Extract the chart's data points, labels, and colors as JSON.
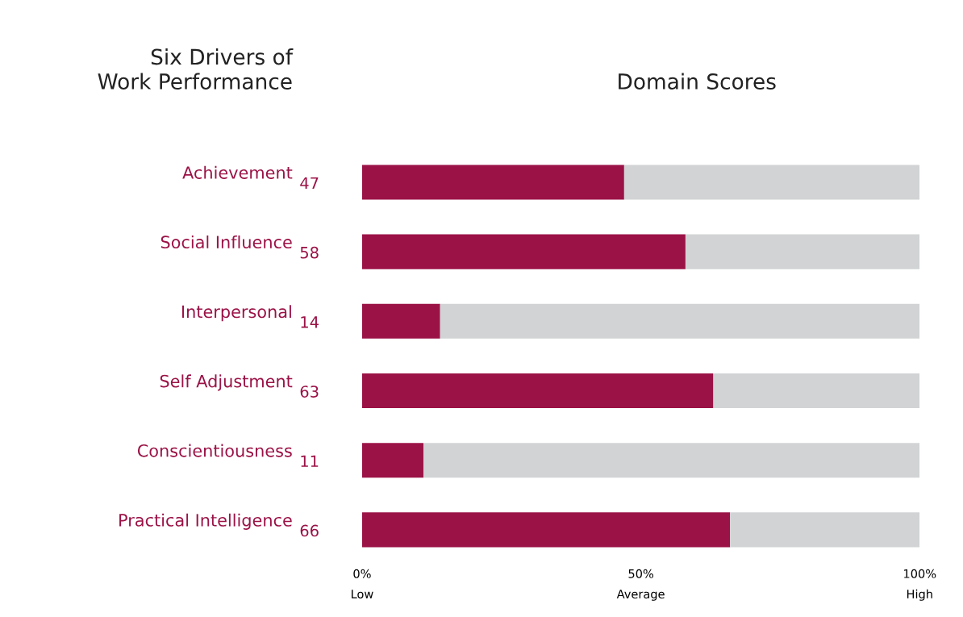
{
  "chart_data": {
    "type": "bar",
    "orientation": "horizontal",
    "stacked": true,
    "title": "Domain Scores",
    "ylabel": "Six Drivers of\nWork Performance",
    "categories": [
      "Achievement",
      "Social Influence",
      "Interpersonal",
      "Self Adjustment",
      "Conscientiousness",
      "Practical Intelligence"
    ],
    "series": [
      {
        "color": "#9b1246",
        "values": [
          47,
          58,
          14,
          63,
          11,
          66
        ],
        "data_labels": true
      },
      {
        "color": "#d1d3d4",
        "values": [
          53,
          42,
          86,
          37,
          89,
          34
        ]
      }
    ],
    "xlim": [
      0,
      100
    ],
    "xticks": [
      {
        "value": 0,
        "label": "0%\nLow"
      },
      {
        "value": 50,
        "label": "50%\nAverage"
      },
      {
        "value": 100,
        "label": "100%\nHigh"
      }
    ],
    "grid": false,
    "legend": false
  }
}
